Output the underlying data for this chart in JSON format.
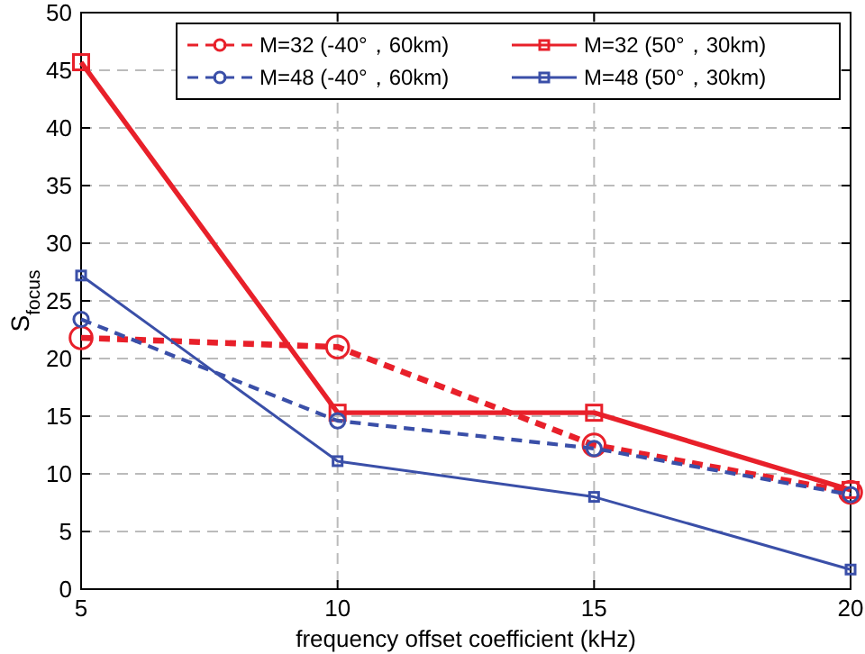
{
  "chart_data": {
    "type": "line",
    "xlabel": "frequency offset coefficient (kHz)",
    "ylabel": "S$_{focus}$",
    "x": [
      5,
      10,
      15,
      20
    ],
    "xlim": [
      5,
      20
    ],
    "xticks": [
      5,
      10,
      15,
      20
    ],
    "ylim": [
      0,
      50
    ],
    "yticks": [
      0,
      5,
      10,
      15,
      20,
      25,
      30,
      35,
      40,
      45,
      50
    ],
    "grid": true,
    "legend": "top right",
    "series": [
      {
        "name": "M=32 (-40°，60km)",
        "color": "#e8202a",
        "values": [
          21.8,
          21.0,
          12.5,
          8.4
        ],
        "marker": "circle",
        "line_style": "dashed"
      },
      {
        "name": "M=32 (50°，30km)",
        "color": "#e8202a",
        "values": [
          45.7,
          15.3,
          15.3,
          8.6
        ],
        "marker": "square",
        "line_style": "solid"
      },
      {
        "name": "M=48 (-40°，60km)",
        "color": "#3a4fa8",
        "values": [
          23.4,
          14.6,
          12.2,
          8.2
        ],
        "marker": "circle",
        "line_style": "dashed"
      },
      {
        "name": "M=48 (50°，30km)",
        "color": "#3a4fa8",
        "values": [
          27.2,
          11.1,
          8.0,
          1.7
        ],
        "marker": "square",
        "line_style": "solid"
      }
    ]
  }
}
